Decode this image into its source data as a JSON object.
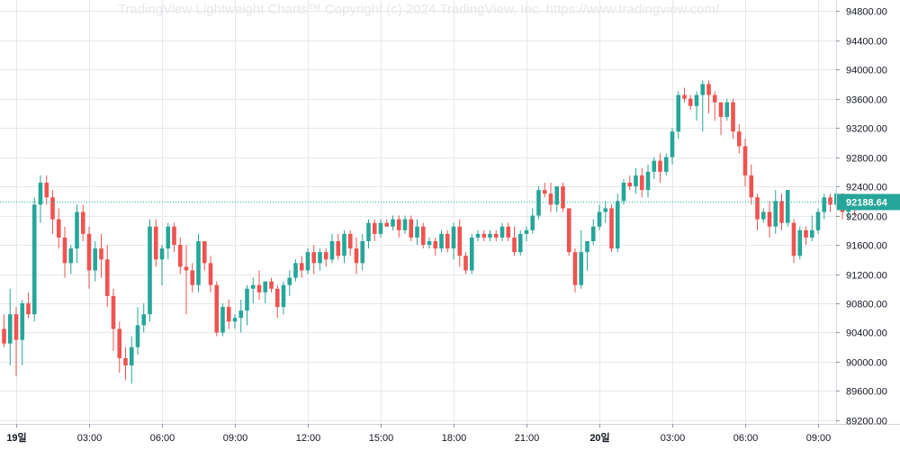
{
  "watermark": "TradingView Lightweight Charts™ Copyright (c) 2024 TradingView, Inc. https://www.tradingview.com/",
  "colors": {
    "up": "#26a69a",
    "down": "#ef5350",
    "grid": "#e6e8ec",
    "text": "#131722",
    "price_line": "#26a69a"
  },
  "chart_data": {
    "type": "candlestick",
    "title": "",
    "xlabel": "",
    "ylabel": "",
    "ylim": [
      89150,
      94950
    ],
    "y_ticks": [
      {
        "value": 94800,
        "label": "94800.00"
      },
      {
        "value": 94400,
        "label": "94400.00"
      },
      {
        "value": 94000,
        "label": "94000.00"
      },
      {
        "value": 93600,
        "label": "93600.00"
      },
      {
        "value": 93200,
        "label": "93200.00"
      },
      {
        "value": 92800,
        "label": "92800.00"
      },
      {
        "value": 92400,
        "label": "92400.00"
      },
      {
        "value": 92000,
        "label": "92000.00"
      },
      {
        "value": 91600,
        "label": "91600.00"
      },
      {
        "value": 91200,
        "label": "91200.00"
      },
      {
        "value": 90800,
        "label": "90800.00"
      },
      {
        "value": 90400,
        "label": "90400.00"
      },
      {
        "value": 90000,
        "label": "90000.00"
      },
      {
        "value": 89600,
        "label": "89600.00"
      },
      {
        "value": 89200,
        "label": "89200.00"
      }
    ],
    "x_ticks": [
      {
        "index": 2,
        "label": "19일"
      },
      {
        "index": 14,
        "label": "03:00"
      },
      {
        "index": 26,
        "label": "06:00"
      },
      {
        "index": 38,
        "label": "09:00"
      },
      {
        "index": 50,
        "label": "12:00"
      },
      {
        "index": 62,
        "label": "15:00"
      },
      {
        "index": 74,
        "label": "18:00"
      },
      {
        "index": 86,
        "label": "21:00"
      },
      {
        "index": 98,
        "label": "20일"
      },
      {
        "index": 110,
        "label": "03:00"
      },
      {
        "index": 122,
        "label": "06:00"
      },
      {
        "index": 134,
        "label": "09:00"
      }
    ],
    "last_price": 92188.64,
    "last_price_label": "92188.64",
    "ohlc": [
      [
        90450,
        90650,
        90200,
        90250
      ],
      [
        90250,
        91000,
        89950,
        90650
      ],
      [
        90650,
        90750,
        89800,
        90300
      ],
      [
        90300,
        90850,
        89950,
        90800
      ],
      [
        90800,
        90950,
        90600,
        90650
      ],
      [
        90650,
        92250,
        90550,
        92150
      ],
      [
        92150,
        92550,
        91900,
        92450
      ],
      [
        92450,
        92550,
        92150,
        92250
      ],
      [
        92250,
        92350,
        91750,
        91950
      ],
      [
        91950,
        92100,
        91550,
        91700
      ],
      [
        91700,
        91850,
        91150,
        91350
      ],
      [
        91350,
        91600,
        91200,
        91550
      ],
      [
        91550,
        92150,
        91350,
        92050
      ],
      [
        92050,
        92150,
        91650,
        91750
      ],
      [
        91750,
        91850,
        91000,
        91250
      ],
      [
        91250,
        91650,
        91100,
        91550
      ],
      [
        91550,
        91750,
        91150,
        91400
      ],
      [
        91400,
        91600,
        90750,
        90900
      ],
      [
        90900,
        91000,
        90150,
        90450
      ],
      [
        90450,
        90550,
        89850,
        90050
      ],
      [
        90050,
        90200,
        89750,
        89950
      ],
      [
        89950,
        90350,
        89700,
        90200
      ],
      [
        90200,
        90750,
        90100,
        90500
      ],
      [
        90500,
        90800,
        90400,
        90650
      ],
      [
        90650,
        91950,
        90550,
        91850
      ],
      [
        91850,
        91950,
        91300,
        91400
      ],
      [
        91400,
        91600,
        91050,
        91550
      ],
      [
        91550,
        91900,
        91400,
        91850
      ],
      [
        91850,
        91900,
        91500,
        91600
      ],
      [
        91600,
        91700,
        91200,
        91300
      ],
      [
        91300,
        91600,
        90650,
        91250
      ],
      [
        91250,
        91350,
        90950,
        91050
      ],
      [
        91050,
        91750,
        90950,
        91650
      ],
      [
        91650,
        91650,
        91250,
        91350
      ],
      [
        91350,
        91450,
        90950,
        91050
      ],
      [
        91050,
        91100,
        90350,
        90400
      ],
      [
        90400,
        90800,
        90350,
        90750
      ],
      [
        90750,
        90850,
        90450,
        90550
      ],
      [
        90550,
        90650,
        90450,
        90600
      ],
      [
        90600,
        90850,
        90400,
        90700
      ],
      [
        90700,
        91050,
        90500,
        91000
      ],
      [
        91000,
        91150,
        90800,
        91050
      ],
      [
        91050,
        91250,
        90850,
        90950
      ],
      [
        90950,
        91100,
        90800,
        91100
      ],
      [
        91100,
        91150,
        90950,
        91000
      ],
      [
        91000,
        91050,
        90600,
        90750
      ],
      [
        90750,
        91100,
        90650,
        91050
      ],
      [
        91050,
        91250,
        90900,
        91150
      ],
      [
        91150,
        91400,
        91100,
        91350
      ],
      [
        91350,
        91450,
        91150,
        91250
      ],
      [
        91250,
        91550,
        91200,
        91500
      ],
      [
        91500,
        91600,
        91200,
        91350
      ],
      [
        91350,
        91550,
        91250,
        91500
      ],
      [
        91500,
        91550,
        91300,
        91400
      ],
      [
        91400,
        91750,
        91350,
        91650
      ],
      [
        91650,
        91750,
        91400,
        91450
      ],
      [
        91450,
        91800,
        91350,
        91750
      ],
      [
        91750,
        91800,
        91450,
        91550
      ],
      [
        91550,
        91700,
        91200,
        91350
      ],
      [
        91350,
        91750,
        91250,
        91650
      ],
      [
        91650,
        91950,
        91550,
        91900
      ],
      [
        91900,
        91950,
        91650,
        91750
      ],
      [
        91750,
        91950,
        91700,
        91900
      ],
      [
        91900,
        91950,
        91850,
        91850
      ],
      [
        91850,
        92000,
        91800,
        91950
      ],
      [
        91950,
        92000,
        91700,
        91800
      ],
      [
        91800,
        92000,
        91750,
        91950
      ],
      [
        91950,
        92000,
        91650,
        91700
      ],
      [
        91700,
        91950,
        91600,
        91850
      ],
      [
        91850,
        91900,
        91550,
        91600
      ],
      [
        91600,
        91700,
        91550,
        91650
      ],
      [
        91650,
        91700,
        91450,
        91550
      ],
      [
        91550,
        91800,
        91500,
        91750
      ],
      [
        91750,
        91800,
        91500,
        91550
      ],
      [
        91550,
        91900,
        91400,
        91850
      ],
      [
        91850,
        91950,
        91300,
        91450
      ],
      [
        91450,
        91500,
        91200,
        91250
      ],
      [
        91250,
        91750,
        91200,
        91700
      ],
      [
        91700,
        91800,
        91650,
        91750
      ],
      [
        91750,
        91800,
        91650,
        91700
      ],
      [
        91700,
        91800,
        91650,
        91750
      ],
      [
        91750,
        91800,
        91650,
        91700
      ],
      [
        91700,
        91900,
        91650,
        91850
      ],
      [
        91850,
        91900,
        91650,
        91700
      ],
      [
        91700,
        91850,
        91450,
        91500
      ],
      [
        91500,
        91800,
        91450,
        91750
      ],
      [
        91750,
        91850,
        91650,
        91800
      ],
      [
        91800,
        92100,
        91750,
        92000
      ],
      [
        92000,
        92400,
        91950,
        92350
      ],
      [
        92350,
        92450,
        92250,
        92300
      ],
      [
        92300,
        92450,
        92050,
        92150
      ],
      [
        92150,
        92400,
        92050,
        92400
      ],
      [
        92400,
        92450,
        92050,
        92100
      ],
      [
        92100,
        92100,
        91450,
        91500
      ],
      [
        91500,
        91550,
        90950,
        91050
      ],
      [
        91050,
        91800,
        91000,
        91500
      ],
      [
        91500,
        91650,
        91250,
        91650
      ],
      [
        91650,
        91950,
        91600,
        91850
      ],
      [
        91850,
        92150,
        91800,
        92050
      ],
      [
        92050,
        92200,
        91900,
        92100
      ],
      [
        92100,
        92150,
        91500,
        91550
      ],
      [
        91550,
        92300,
        91500,
        92200
      ],
      [
        92200,
        92500,
        92150,
        92450
      ],
      [
        92450,
        92550,
        92350,
        92400
      ],
      [
        92400,
        92650,
        92300,
        92550
      ],
      [
        92550,
        92650,
        92250,
        92350
      ],
      [
        92350,
        92700,
        92250,
        92600
      ],
      [
        92600,
        92800,
        92500,
        92750
      ],
      [
        92750,
        92850,
        92450,
        92600
      ],
      [
        92600,
        92850,
        92550,
        92800
      ],
      [
        92800,
        93200,
        92700,
        93150
      ],
      [
        93150,
        93700,
        93050,
        93650
      ],
      [
        93650,
        93750,
        93550,
        93600
      ],
      [
        93600,
        93650,
        93450,
        93500
      ],
      [
        93500,
        93700,
        93300,
        93650
      ],
      [
        93650,
        93850,
        93150,
        93800
      ],
      [
        93800,
        93850,
        93400,
        93650
      ],
      [
        93650,
        93700,
        93300,
        93550
      ],
      [
        93550,
        93550,
        93100,
        93350
      ],
      [
        93350,
        93600,
        93300,
        93550
      ],
      [
        93550,
        93600,
        93050,
        93150
      ],
      [
        93150,
        93250,
        92850,
        92950
      ],
      [
        92950,
        93050,
        92400,
        92550
      ],
      [
        92550,
        92700,
        92150,
        92250
      ],
      [
        92250,
        92300,
        91800,
        91950
      ],
      [
        91950,
        92100,
        91900,
        92050
      ],
      [
        92050,
        92200,
        91700,
        91850
      ],
      [
        91850,
        92350,
        91750,
        92200
      ],
      [
        92200,
        92300,
        91800,
        91900
      ],
      [
        91900,
        92350,
        91850,
        92350
      ],
      [
        91900,
        91950,
        91350,
        91450
      ],
      [
        91450,
        91850,
        91400,
        91800
      ],
      [
        91800,
        91850,
        91600,
        91700
      ],
      [
        91700,
        92000,
        91650,
        91800
      ],
      [
        91800,
        92100,
        91750,
        92050
      ],
      [
        92050,
        92300,
        91950,
        92250
      ],
      [
        92250,
        92300,
        92050,
        92150
      ],
      [
        92150,
        92350,
        92100,
        92300
      ],
      [
        92300,
        92300,
        91950,
        92050
      ],
      [
        92050,
        92300,
        91950,
        92200
      ],
      [
        92200,
        92250,
        92000,
        92150
      ],
      [
        92150,
        92250,
        92100,
        92189
      ]
    ]
  }
}
